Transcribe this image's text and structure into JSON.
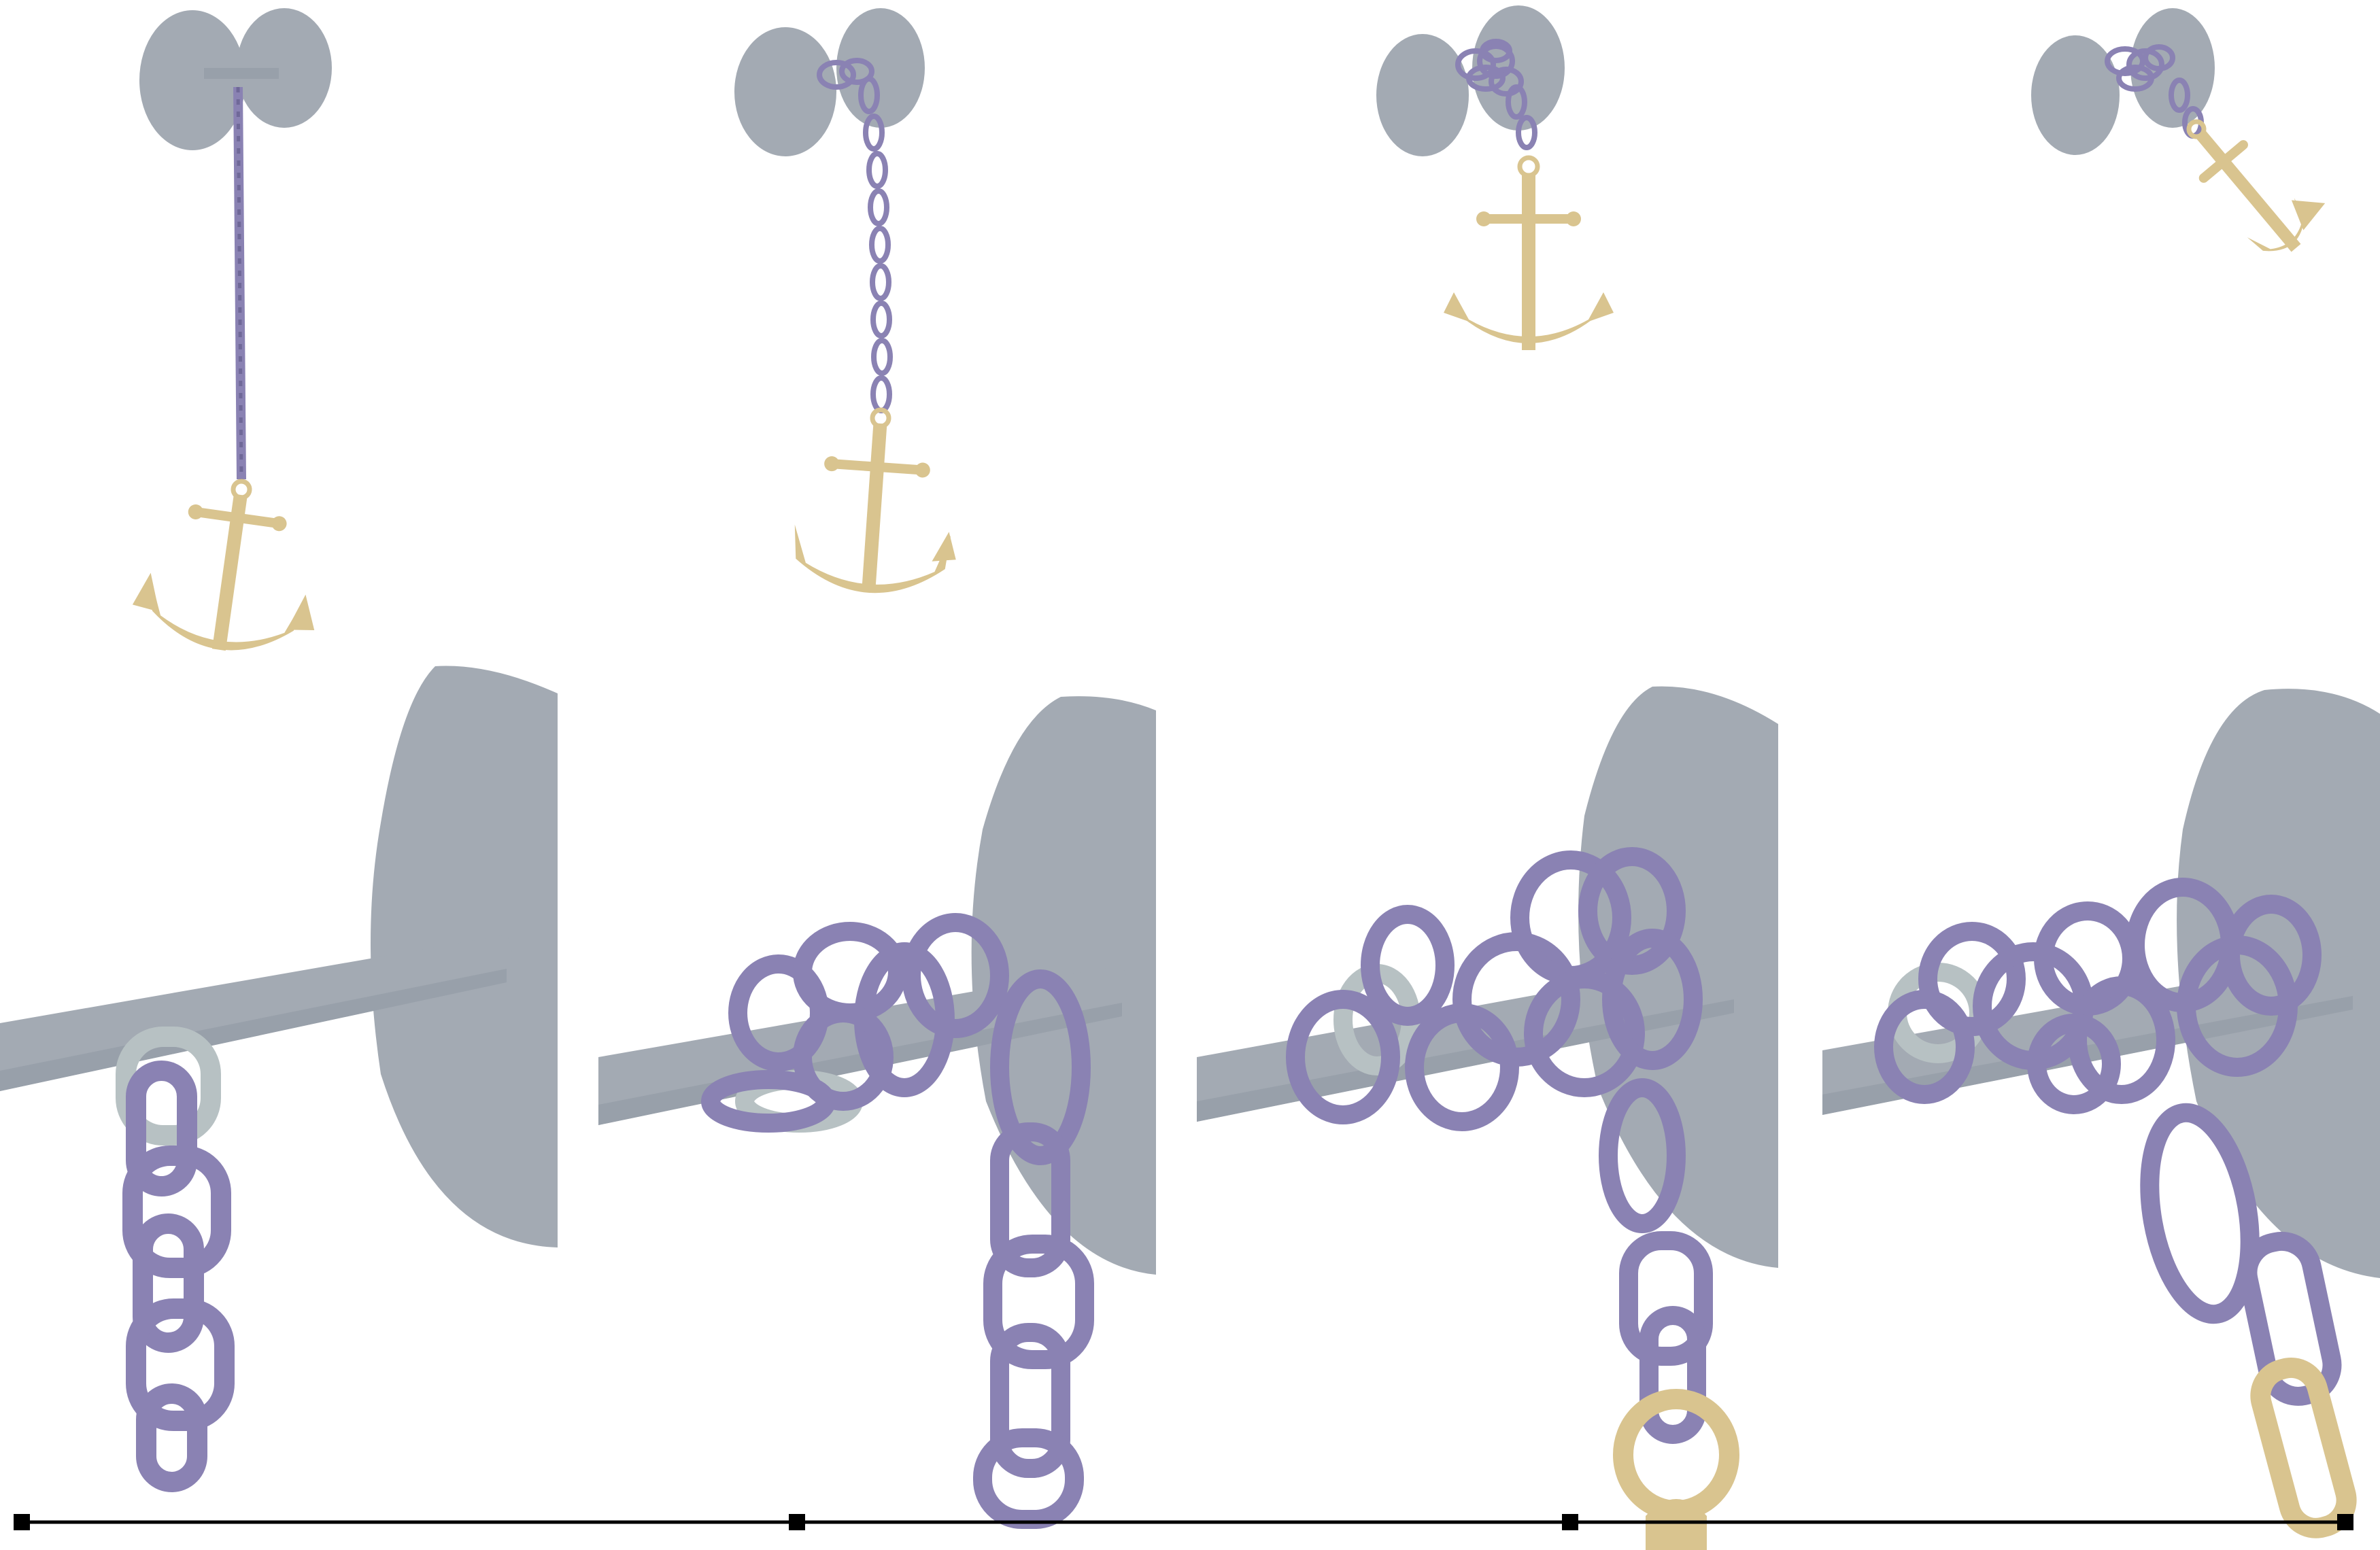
{
  "figure": {
    "panels": [
      {
        "stage": 1
      },
      {
        "stage": 2
      },
      {
        "stage": 3
      },
      {
        "stage": 4
      }
    ],
    "colors": {
      "background": "#ffffff",
      "winch": "#a3aab3",
      "winch_shade": "#8d959f",
      "chain": "#8a82b3",
      "chain_dark": "#6f6898",
      "chain_pale": "#b7c1c3",
      "anchor": "#d9c48f",
      "anchor_shade": "#c3ad78",
      "timeline": "#000000"
    },
    "timeline": {
      "markers": 4
    }
  }
}
